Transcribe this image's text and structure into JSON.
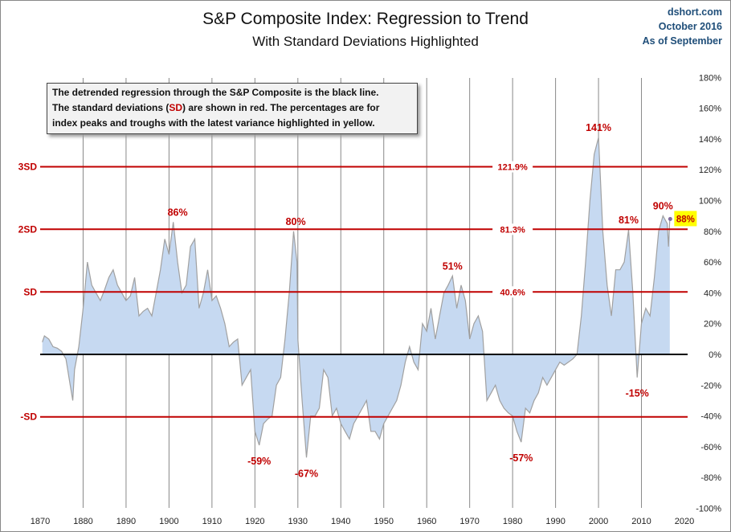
{
  "chart_data": {
    "type": "area",
    "title": "S&P Composite Index: Regression to Trend",
    "subtitle": "With Standard Deviations Highlighted",
    "source": [
      "dshort.com",
      "October 2016",
      "As of September"
    ],
    "note": {
      "line1": "The detrended regression through the S&P Composite is the black line.",
      "line2_pre": "The standard deviations (",
      "line2_sd": "SD",
      "line2_post": ") are shown in red.  The percentages are for",
      "line3": "index peaks and troughs with the latest variance highlighted in yellow."
    },
    "xlim": [
      1870,
      2020
    ],
    "x_ticks": [
      "1870",
      "1880",
      "1890",
      "1900",
      "1910",
      "1920",
      "1930",
      "1940",
      "1950",
      "1960",
      "1970",
      "1980",
      "1990",
      "2000",
      "2010",
      "2020"
    ],
    "ylim": [
      -100,
      180
    ],
    "y_ticks": [
      "180%",
      "160%",
      "140%",
      "120%",
      "100%",
      "80%",
      "60%",
      "40%",
      "20%",
      "0%",
      "-20%",
      "-40%",
      "-60%",
      "-80%",
      "-100%"
    ],
    "grid": "vertical",
    "colors": {
      "area": "#c6d9f1",
      "line": "#a0a0a0",
      "sd": "#c00000",
      "trend": "#000000",
      "highlight": "#ffff00",
      "marker": "#7f6a9f"
    },
    "sd_lines": [
      {
        "label": "3SD",
        "value": 121.9,
        "value_label": "121.9%"
      },
      {
        "label": "2SD",
        "value": 81.3,
        "value_label": "81.3%"
      },
      {
        "label": "SD",
        "value": 40.6,
        "value_label": "40.6%"
      },
      {
        "label": "-SD",
        "value": -40.6,
        "value_label": ""
      }
    ],
    "series": [
      {
        "x": [
          1870.5,
          1871,
          1872,
          1873,
          1874,
          1875,
          1876,
          1877,
          1877.6,
          1878,
          1879,
          1880,
          1881,
          1882,
          1883,
          1884,
          1885,
          1886,
          1887,
          1888,
          1889,
          1890,
          1891,
          1892,
          1893,
          1894,
          1895,
          1896,
          1897,
          1898,
          1899,
          1900,
          1901,
          1902,
          1903,
          1904,
          1905,
          1906,
          1907,
          1908,
          1909,
          1910,
          1911,
          1912,
          1913,
          1914,
          1915,
          1916,
          1917,
          1918,
          1919,
          1920,
          1921,
          1922,
          1923,
          1924,
          1925,
          1926,
          1927,
          1928,
          1929,
          1929.8,
          1930,
          1931,
          1932,
          1933,
          1934,
          1935,
          1936,
          1937,
          1938,
          1939,
          1940,
          1941,
          1942,
          1943,
          1944,
          1945,
          1946,
          1947,
          1948,
          1949,
          1950,
          1951,
          1952,
          1953,
          1954,
          1955,
          1956,
          1957,
          1958,
          1959,
          1960,
          1961,
          1962,
          1963,
          1964,
          1965,
          1966,
          1967,
          1968,
          1969,
          1970,
          1971,
          1972,
          1973,
          1974,
          1975,
          1976,
          1977,
          1978,
          1979,
          1980,
          1981,
          1982,
          1983,
          1984,
          1985,
          1986,
          1987,
          1988,
          1989,
          1990,
          1991,
          1992,
          1993,
          1994,
          1995,
          1996,
          1997,
          1998,
          1999,
          2000,
          2001,
          2002,
          2003,
          2004,
          2005,
          2006,
          2007,
          2008,
          2009,
          2010,
          2011,
          2012,
          2013,
          2014,
          2015,
          2016,
          2016.3,
          2016.6
        ],
        "y": [
          8,
          12,
          10,
          5,
          4,
          2,
          -3,
          -20,
          -30,
          -10,
          5,
          30,
          60,
          45,
          40,
          35,
          42,
          50,
          55,
          45,
          40,
          35,
          38,
          50,
          25,
          28,
          30,
          25,
          40,
          55,
          75,
          65,
          86,
          60,
          40,
          45,
          70,
          75,
          30,
          40,
          55,
          35,
          38,
          30,
          20,
          5,
          8,
          10,
          -20,
          -15,
          -10,
          -50,
          -59,
          -45,
          -42,
          -40,
          -20,
          -15,
          10,
          40,
          80,
          60,
          10,
          -30,
          -67,
          -40,
          -40,
          -35,
          -10,
          -15,
          -40,
          -35,
          -45,
          -50,
          -55,
          -45,
          -40,
          -35,
          -30,
          -50,
          -50,
          -55,
          -45,
          -40,
          -35,
          -30,
          -20,
          -5,
          5,
          -5,
          -10,
          20,
          15,
          30,
          10,
          25,
          40,
          45,
          51,
          30,
          45,
          35,
          10,
          20,
          25,
          15,
          -30,
          -25,
          -20,
          -30,
          -35,
          -38,
          -40,
          -50,
          -57,
          -35,
          -38,
          -30,
          -25,
          -15,
          -20,
          -15,
          -10,
          -5,
          -7,
          -5,
          -3,
          0,
          25,
          60,
          100,
          130,
          141,
          80,
          45,
          25,
          55,
          55,
          60,
          81,
          40,
          -15,
          20,
          30,
          25,
          50,
          80,
          90,
          85,
          70,
          88
        ]
      }
    ],
    "annotations": [
      {
        "year": 1902,
        "value": 86,
        "label": "86%"
      },
      {
        "year": 1929.5,
        "value": 80,
        "label": "80%"
      },
      {
        "year": 1966,
        "value": 51,
        "label": "51%"
      },
      {
        "year": 2000,
        "value": 141,
        "label": "141%"
      },
      {
        "year": 2007,
        "value": 81,
        "label": "81%"
      },
      {
        "year": 2015,
        "value": 90,
        "label": "90%"
      },
      {
        "year": 1921,
        "value": -59,
        "label": "-59%"
      },
      {
        "year": 1932,
        "value": -67,
        "label": "-67%"
      },
      {
        "year": 1982,
        "value": -57,
        "label": "-57%"
      },
      {
        "year": 2009,
        "value": -15,
        "label": "-15%"
      }
    ],
    "latest": {
      "year": 2016.7,
      "value": 88,
      "label": "88%"
    }
  }
}
